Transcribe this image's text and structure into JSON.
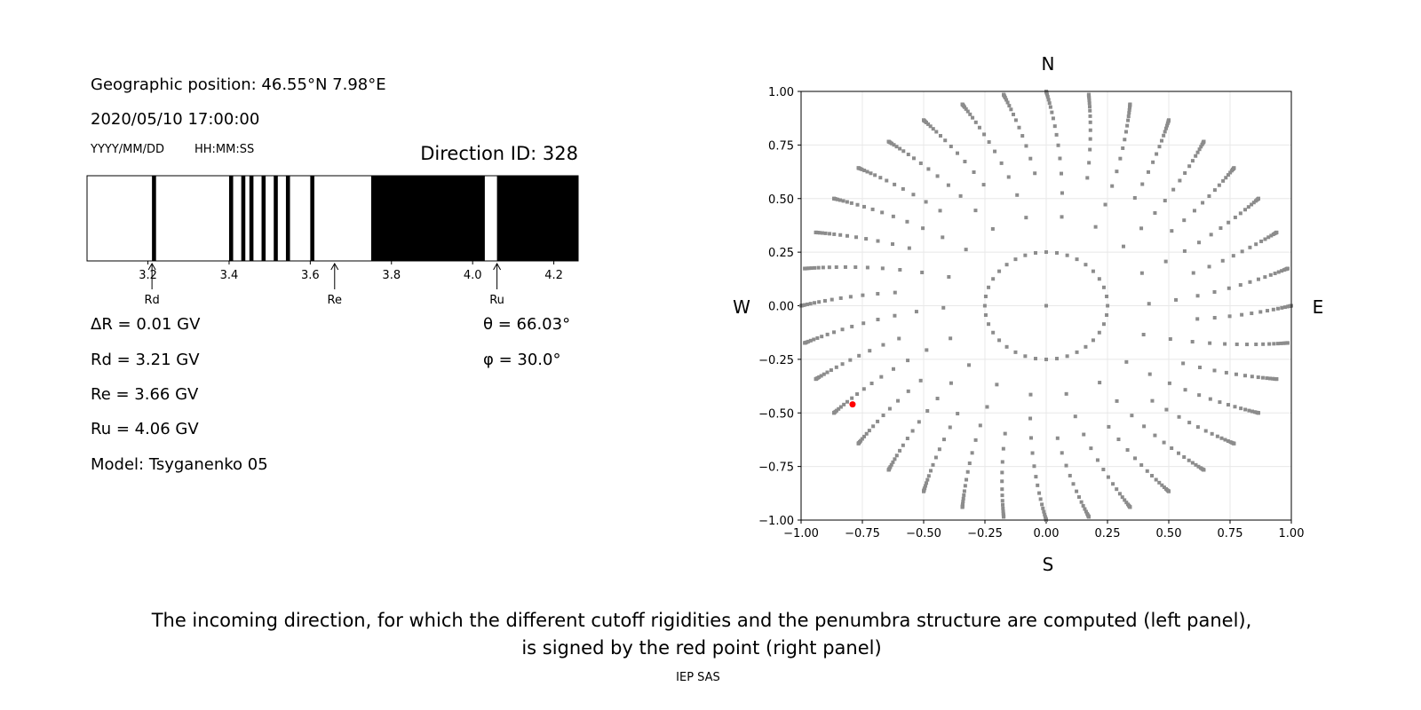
{
  "left_panel": {
    "geo_position": "Geographic position: 46.55°N 7.98°E",
    "datetime": "2020/05/10 17:00:00",
    "date_format": "YYYY/MM/DD",
    "time_format": "HH:MM:SS",
    "direction_id": "Direction ID: 328",
    "delta_r": "ΔR = 0.01 GV",
    "rd": "Rd = 3.21 GV",
    "re": "Re = 3.66 GV",
    "ru": "Ru = 4.06 GV",
    "model": "Model: Tsyganenko 05",
    "theta": "θ = 66.03°",
    "phi": "φ = 30.0°"
  },
  "caption": {
    "line1": "The incoming direction, for which the different cutoff rigidities and the penumbra structure are computed (left panel),",
    "line2": "is signed by the red point (right panel)",
    "credit": "IEP SAS"
  },
  "chart_data": [
    {
      "type": "bar",
      "title": "",
      "xlim": [
        3.05,
        4.26
      ],
      "xticks": [
        "3.2",
        "3.4",
        "3.6",
        "3.8",
        "4.0",
        "4.2"
      ],
      "black_bands": [
        [
          3.21,
          3.22
        ],
        [
          3.4,
          3.41
        ],
        [
          3.43,
          3.44
        ],
        [
          3.45,
          3.46
        ],
        [
          3.48,
          3.49
        ],
        [
          3.51,
          3.52
        ],
        [
          3.54,
          3.55
        ],
        [
          3.6,
          3.61
        ],
        [
          3.75,
          4.03
        ],
        [
          4.06,
          4.26
        ]
      ],
      "markers": [
        {
          "label": "Rd",
          "value": 3.21
        },
        {
          "label": "Re",
          "value": 3.66
        },
        {
          "label": "Ru",
          "value": 4.06
        }
      ],
      "colors": {
        "band": "#000000",
        "background": "#ffffff"
      }
    },
    {
      "type": "scatter",
      "xlim": [
        -1.0,
        1.0
      ],
      "ylim": [
        -1.0,
        1.0
      ],
      "xticks": [
        "−1.00",
        "−0.75",
        "−0.50",
        "−0.25",
        "0.00",
        "0.25",
        "0.50",
        "0.75",
        "1.00"
      ],
      "yticks": [
        "−1.00",
        "−0.75",
        "−0.50",
        "−0.25",
        "0.00",
        "0.25",
        "0.50",
        "0.75",
        "1.00"
      ],
      "grid": true,
      "directions": {
        "north": "N",
        "south": "S",
        "west": "W",
        "east": "E"
      },
      "azimuth_step_deg": 10,
      "zenith_angles_deg": [
        0,
        14.5,
        24.8,
        32,
        38.3,
        43.6,
        48.6,
        53,
        57,
        61,
        64.5,
        68,
        71,
        74,
        77,
        80,
        82.5,
        85,
        87,
        89,
        90
      ],
      "selected_point": {
        "x": -0.79,
        "y": -0.46
      },
      "colors": {
        "points": "#8c8c8c",
        "selected": "#ff0000",
        "grid": "#e8e8e8"
      }
    }
  ]
}
